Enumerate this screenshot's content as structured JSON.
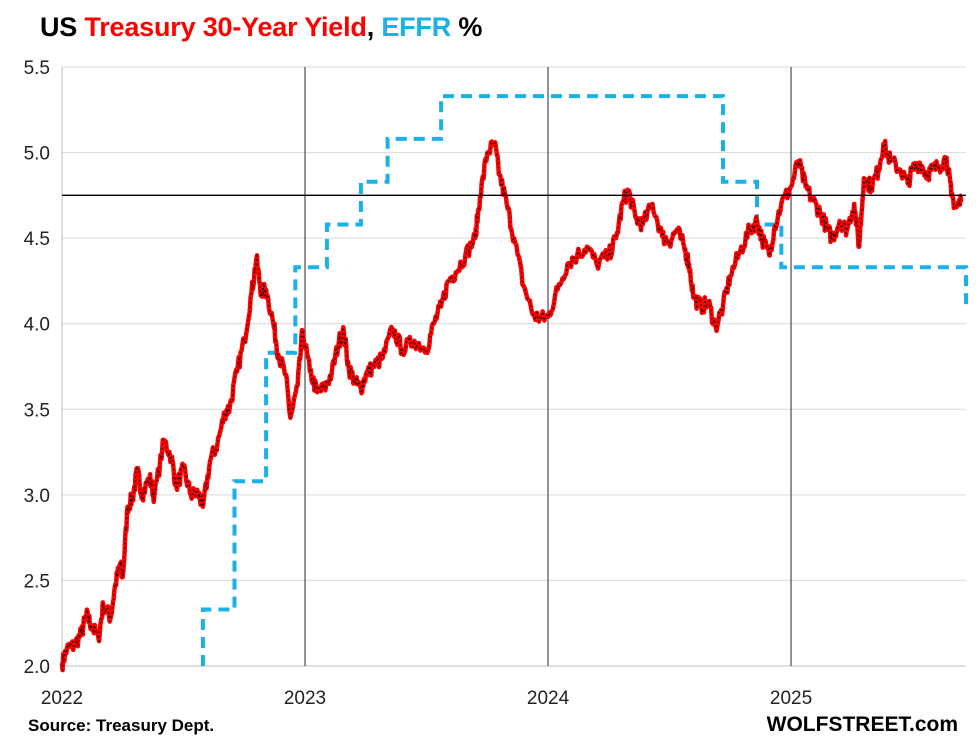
{
  "title": {
    "part1": "US ",
    "part2": "Treasury 30-Year Yield",
    "part3": ", ",
    "part4": "EFFR",
    "part5": " %"
  },
  "colors": {
    "yield": "#ff0000",
    "yield_dots": "#000000",
    "effr": "#1ab0e8",
    "grid": "#d9d9d9",
    "year_lines": "#595959",
    "ref_line": "#000000"
  },
  "source": "Source: Treasury Dept.",
  "brand": "WOLFSTREET.com",
  "chart_data": {
    "type": "line",
    "title": "US Treasury 30-Year Yield, EFFR %",
    "xlabel": "",
    "ylabel": "%",
    "ylim": [
      2.0,
      5.5
    ],
    "xlim": [
      2022.0,
      2025.72
    ],
    "yticks": [
      "2.0",
      "2.5",
      "3.0",
      "3.5",
      "4.0",
      "4.5",
      "5.0",
      "5.5"
    ],
    "xticks": [
      {
        "value": 2022,
        "label": "2022"
      },
      {
        "value": 2023,
        "label": "2023"
      },
      {
        "value": 2024,
        "label": "2024"
      },
      {
        "value": 2025,
        "label": "2025"
      }
    ],
    "grid": "horizontal",
    "reference_line": 4.75,
    "series": [
      {
        "name": "Treasury 30-Year Yield",
        "style": "line",
        "points": [
          [
            2022.0,
            2.01
          ],
          [
            2022.02,
            2.1
          ],
          [
            2022.05,
            2.12
          ],
          [
            2022.08,
            2.19
          ],
          [
            2022.1,
            2.3
          ],
          [
            2022.12,
            2.24
          ],
          [
            2022.15,
            2.16
          ],
          [
            2022.17,
            2.36
          ],
          [
            2022.2,
            2.28
          ],
          [
            2022.22,
            2.48
          ],
          [
            2022.24,
            2.6
          ],
          [
            2022.25,
            2.52
          ],
          [
            2022.27,
            2.93
          ],
          [
            2022.29,
            2.98
          ],
          [
            2022.31,
            3.14
          ],
          [
            2022.33,
            3.0
          ],
          [
            2022.36,
            3.1
          ],
          [
            2022.38,
            2.99
          ],
          [
            2022.42,
            3.32
          ],
          [
            2022.45,
            3.22
          ],
          [
            2022.47,
            3.05
          ],
          [
            2022.5,
            3.15
          ],
          [
            2022.53,
            3.0
          ],
          [
            2022.56,
            3.01
          ],
          [
            2022.58,
            2.93
          ],
          [
            2022.61,
            3.2
          ],
          [
            2022.64,
            3.3
          ],
          [
            2022.67,
            3.48
          ],
          [
            2022.69,
            3.51
          ],
          [
            2022.72,
            3.72
          ],
          [
            2022.75,
            3.9
          ],
          [
            2022.78,
            4.18
          ],
          [
            2022.8,
            4.38
          ],
          [
            2022.82,
            4.18
          ],
          [
            2022.84,
            4.2
          ],
          [
            2022.87,
            4.0
          ],
          [
            2022.89,
            3.82
          ],
          [
            2022.92,
            3.7
          ],
          [
            2022.94,
            3.45
          ],
          [
            2022.97,
            3.64
          ],
          [
            2022.99,
            3.96
          ],
          [
            2023.02,
            3.72
          ],
          [
            2023.05,
            3.6
          ],
          [
            2023.08,
            3.62
          ],
          [
            2023.11,
            3.71
          ],
          [
            2023.14,
            3.9
          ],
          [
            2023.16,
            3.95
          ],
          [
            2023.18,
            3.74
          ],
          [
            2023.21,
            3.65
          ],
          [
            2023.23,
            3.62
          ],
          [
            2023.25,
            3.7
          ],
          [
            2023.28,
            3.75
          ],
          [
            2023.32,
            3.8
          ],
          [
            2023.36,
            3.97
          ],
          [
            2023.4,
            3.85
          ],
          [
            2023.45,
            3.9
          ],
          [
            2023.5,
            3.85
          ],
          [
            2023.53,
            4.0
          ],
          [
            2023.56,
            4.1
          ],
          [
            2023.59,
            4.25
          ],
          [
            2023.62,
            4.3
          ],
          [
            2023.66,
            4.4
          ],
          [
            2023.7,
            4.5
          ],
          [
            2023.72,
            4.74
          ],
          [
            2023.75,
            5.0
          ],
          [
            2023.78,
            5.05
          ],
          [
            2023.8,
            4.87
          ],
          [
            2023.83,
            4.7
          ],
          [
            2023.86,
            4.5
          ],
          [
            2023.9,
            4.22
          ],
          [
            2023.94,
            4.05
          ],
          [
            2023.97,
            4.03
          ],
          [
            2024.0,
            4.04
          ],
          [
            2024.04,
            4.2
          ],
          [
            2024.08,
            4.35
          ],
          [
            2024.12,
            4.4
          ],
          [
            2024.16,
            4.45
          ],
          [
            2024.2,
            4.35
          ],
          [
            2024.25,
            4.4
          ],
          [
            2024.28,
            4.5
          ],
          [
            2024.31,
            4.72
          ],
          [
            2024.33,
            4.78
          ],
          [
            2024.36,
            4.62
          ],
          [
            2024.39,
            4.58
          ],
          [
            2024.43,
            4.7
          ],
          [
            2024.47,
            4.51
          ],
          [
            2024.5,
            4.48
          ],
          [
            2024.53,
            4.55
          ],
          [
            2024.56,
            4.45
          ],
          [
            2024.58,
            4.35
          ],
          [
            2024.6,
            4.15
          ],
          [
            2024.63,
            4.1
          ],
          [
            2024.66,
            4.12
          ],
          [
            2024.69,
            3.98
          ],
          [
            2024.72,
            4.1
          ],
          [
            2024.75,
            4.28
          ],
          [
            2024.79,
            4.42
          ],
          [
            2024.83,
            4.55
          ],
          [
            2024.86,
            4.6
          ],
          [
            2024.88,
            4.5
          ],
          [
            2024.91,
            4.4
          ],
          [
            2024.93,
            4.55
          ],
          [
            2024.96,
            4.7
          ],
          [
            2025.0,
            4.8
          ],
          [
            2025.03,
            4.95
          ],
          [
            2025.06,
            4.8
          ],
          [
            2025.09,
            4.72
          ],
          [
            2025.12,
            4.65
          ],
          [
            2025.15,
            4.55
          ],
          [
            2025.17,
            4.5
          ],
          [
            2025.2,
            4.6
          ],
          [
            2025.23,
            4.55
          ],
          [
            2025.26,
            4.7
          ],
          [
            2025.28,
            4.45
          ],
          [
            2025.3,
            4.85
          ],
          [
            2025.33,
            4.8
          ],
          [
            2025.36,
            4.9
          ],
          [
            2025.38,
            5.05
          ],
          [
            2025.41,
            4.95
          ],
          [
            2025.45,
            4.9
          ],
          [
            2025.48,
            4.82
          ],
          [
            2025.5,
            4.9
          ],
          [
            2025.53,
            4.94
          ],
          [
            2025.56,
            4.87
          ],
          [
            2025.58,
            4.9
          ],
          [
            2025.61,
            4.92
          ],
          [
            2025.64,
            4.97
          ],
          [
            2025.66,
            4.75
          ],
          [
            2025.68,
            4.68
          ],
          [
            2025.7,
            4.72
          ]
        ]
      },
      {
        "name": "EFFR",
        "style": "step-dashed",
        "points": [
          [
            2022.58,
            2.0
          ],
          [
            2022.58,
            2.33
          ],
          [
            2022.71,
            2.33
          ],
          [
            2022.71,
            3.08
          ],
          [
            2022.84,
            3.08
          ],
          [
            2022.84,
            3.83
          ],
          [
            2022.96,
            3.83
          ],
          [
            2022.96,
            4.33
          ],
          [
            2023.09,
            4.33
          ],
          [
            2023.09,
            4.58
          ],
          [
            2023.23,
            4.58
          ],
          [
            2023.23,
            4.83
          ],
          [
            2023.34,
            4.83
          ],
          [
            2023.34,
            5.08
          ],
          [
            2023.56,
            5.08
          ],
          [
            2023.56,
            5.33
          ],
          [
            2024.72,
            5.33
          ],
          [
            2024.72,
            4.83
          ],
          [
            2024.86,
            4.83
          ],
          [
            2024.86,
            4.58
          ],
          [
            2024.96,
            4.58
          ],
          [
            2024.96,
            4.33
          ],
          [
            2025.72,
            4.33
          ],
          [
            2025.72,
            4.08
          ]
        ]
      }
    ]
  }
}
